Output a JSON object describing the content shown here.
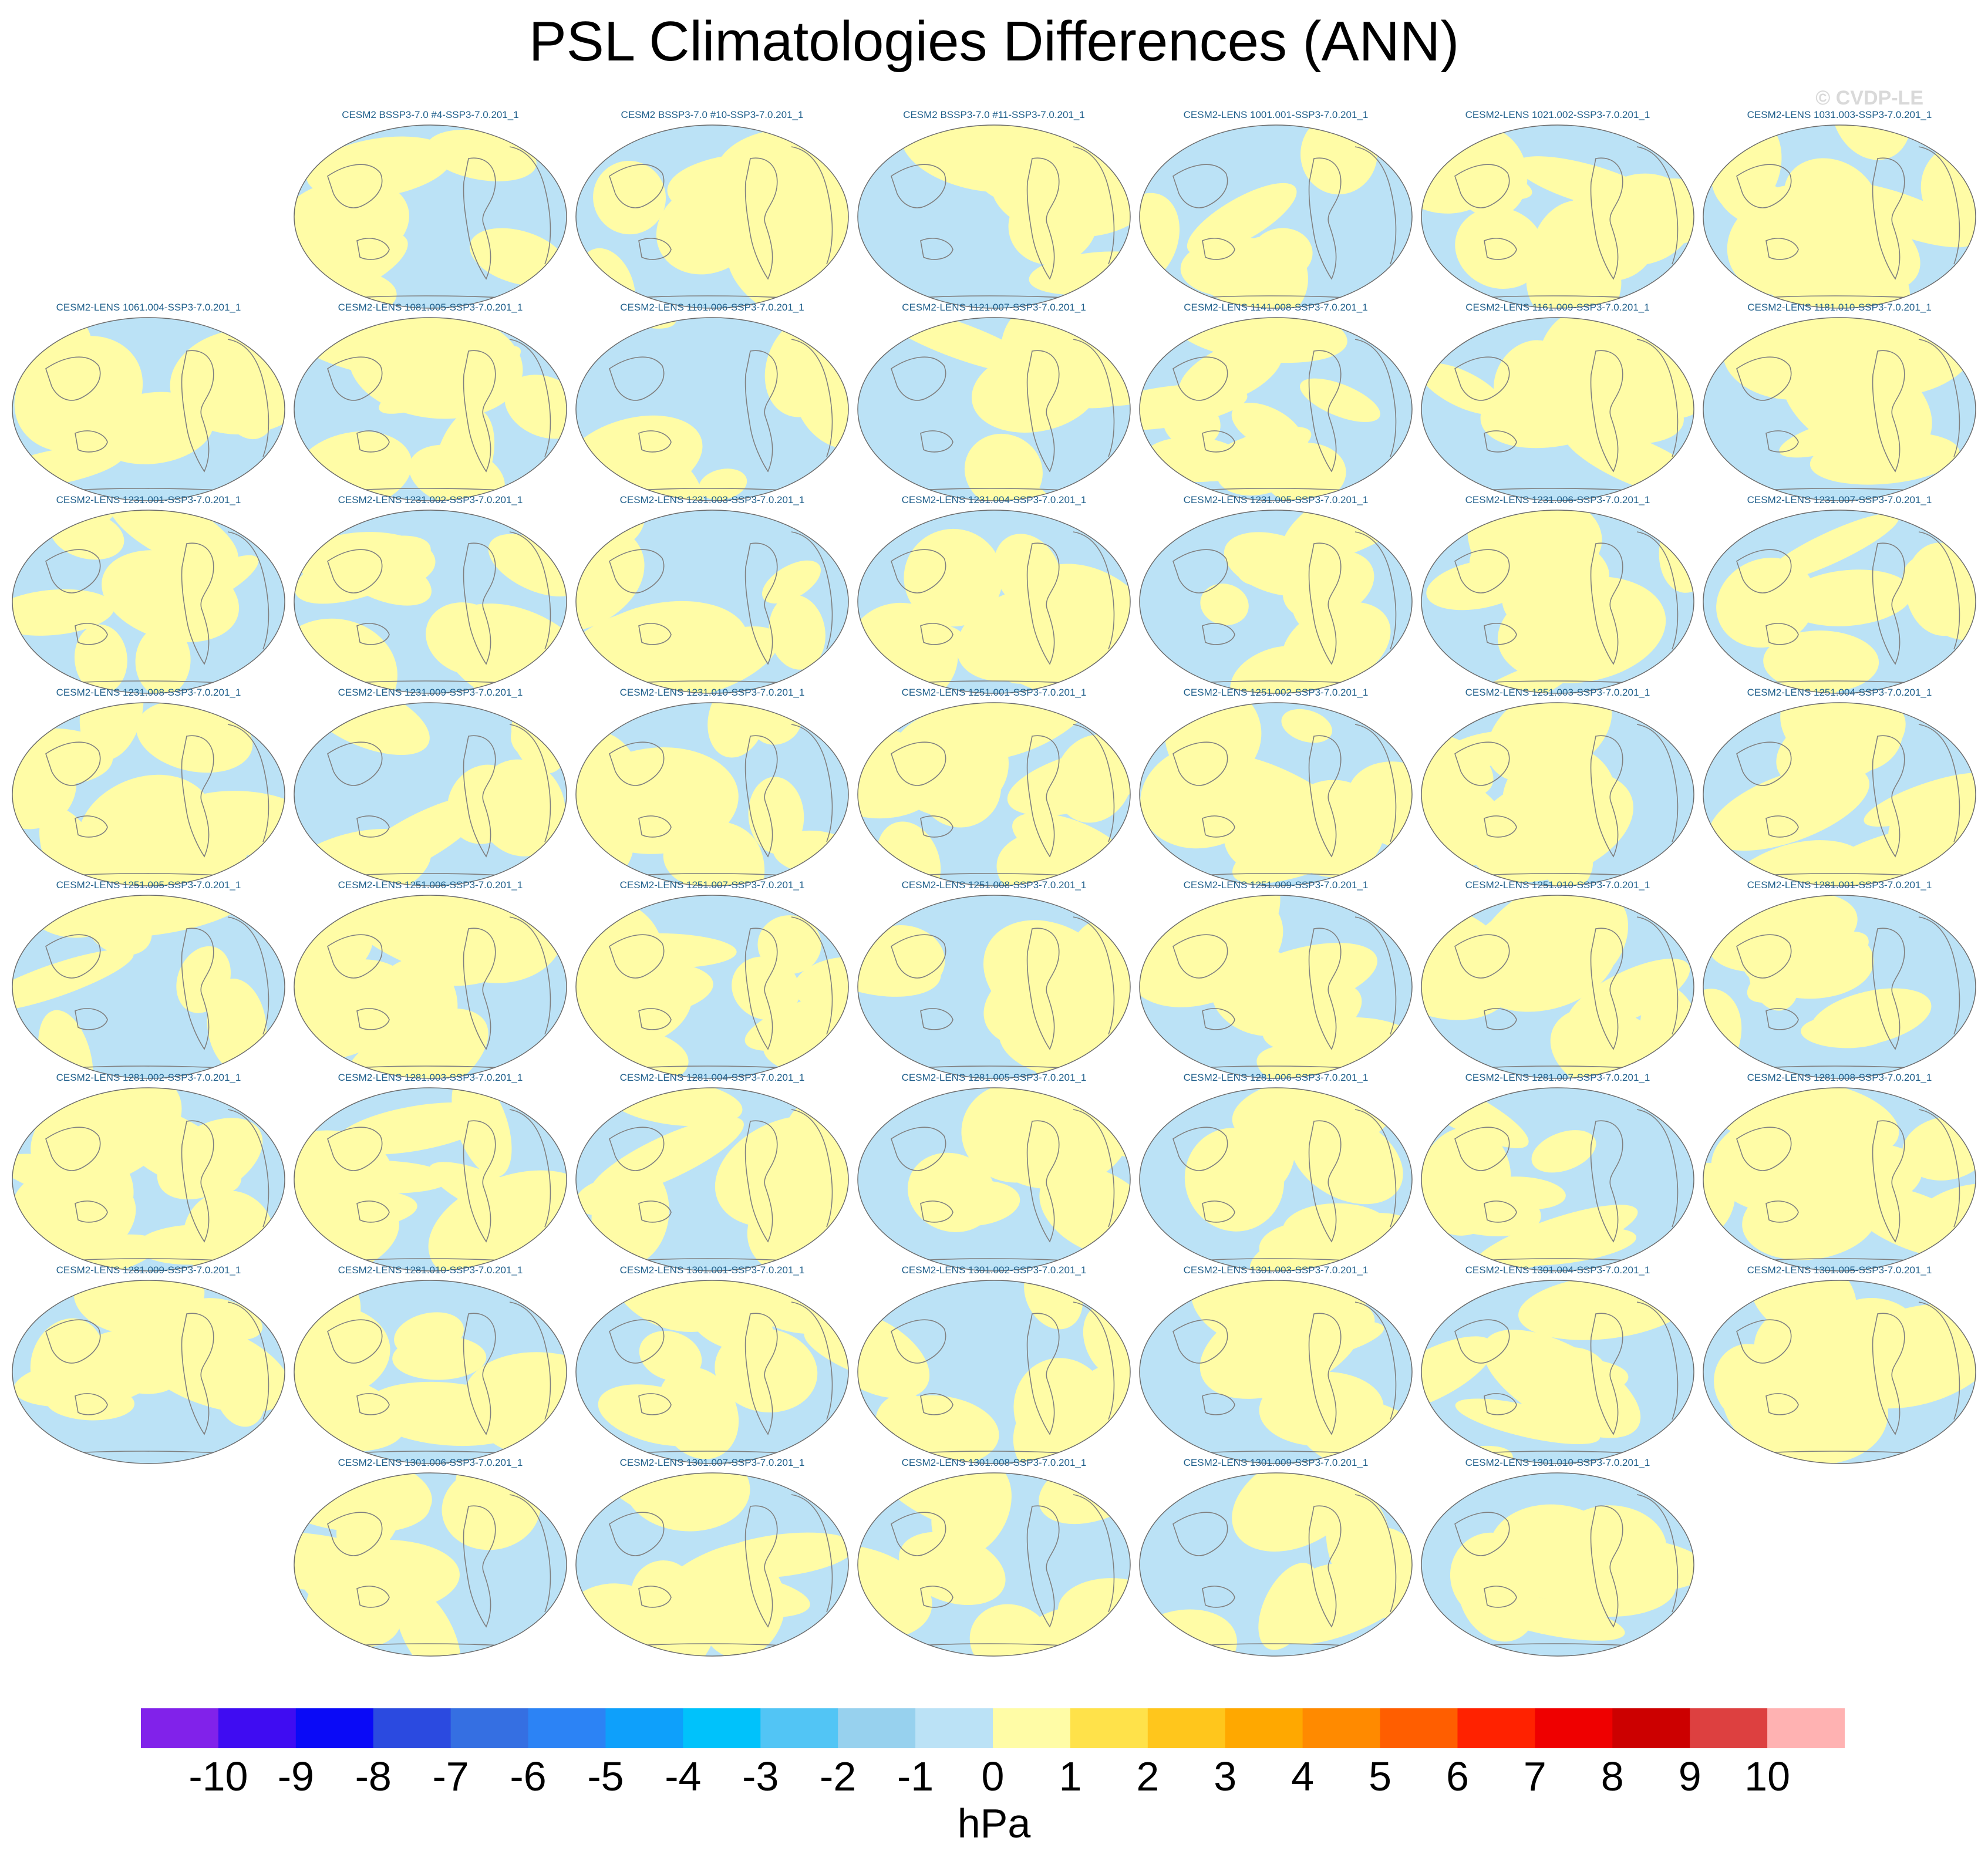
{
  "title": "PSL Climatologies Differences (ANN)",
  "watermark": "© CVDP-LE",
  "chart_data": {
    "type": "heatmap",
    "title": "PSL Climatologies Differences (ANN)",
    "season": "ANN",
    "variable": "PSL",
    "panels": [
      {
        "row": 0,
        "col": 1,
        "label": "CESM2 BSSP3-7.0 #4-SSP3-7.0.201_1"
      },
      {
        "row": 0,
        "col": 2,
        "label": "CESM2 BSSP3-7.0 #10-SSP3-7.0.201_1"
      },
      {
        "row": 0,
        "col": 3,
        "label": "CESM2 BSSP3-7.0 #11-SSP3-7.0.201_1"
      },
      {
        "row": 0,
        "col": 4,
        "label": "CESM2-LENS 1001.001-SSP3-7.0.201_1"
      },
      {
        "row": 0,
        "col": 5,
        "label": "CESM2-LENS 1021.002-SSP3-7.0.201_1"
      },
      {
        "row": 0,
        "col": 6,
        "label": "CESM2-LENS 1031.003-SSP3-7.0.201_1"
      },
      {
        "row": 1,
        "col": 0,
        "label": "CESM2-LENS 1061.004-SSP3-7.0.201_1"
      },
      {
        "row": 1,
        "col": 1,
        "label": "CESM2-LENS 1081.005-SSP3-7.0.201_1"
      },
      {
        "row": 1,
        "col": 2,
        "label": "CESM2-LENS 1101.006-SSP3-7.0.201_1"
      },
      {
        "row": 1,
        "col": 3,
        "label": "CESM2-LENS 1121.007-SSP3-7.0.201_1"
      },
      {
        "row": 1,
        "col": 4,
        "label": "CESM2-LENS 1141.008-SSP3-7.0.201_1"
      },
      {
        "row": 1,
        "col": 5,
        "label": "CESM2-LENS 1161.009-SSP3-7.0.201_1"
      },
      {
        "row": 1,
        "col": 6,
        "label": "CESM2-LENS 1181.010-SSP3-7.0.201_1"
      },
      {
        "row": 2,
        "col": 0,
        "label": "CESM2-LENS 1231.001-SSP3-7.0.201_1"
      },
      {
        "row": 2,
        "col": 1,
        "label": "CESM2-LENS 1231.002-SSP3-7.0.201_1"
      },
      {
        "row": 2,
        "col": 2,
        "label": "CESM2-LENS 1231.003-SSP3-7.0.201_1"
      },
      {
        "row": 2,
        "col": 3,
        "label": "CESM2-LENS 1231.004-SSP3-7.0.201_1"
      },
      {
        "row": 2,
        "col": 4,
        "label": "CESM2-LENS 1231.005-SSP3-7.0.201_1"
      },
      {
        "row": 2,
        "col": 5,
        "label": "CESM2-LENS 1231.006-SSP3-7.0.201_1"
      },
      {
        "row": 2,
        "col": 6,
        "label": "CESM2-LENS 1231.007-SSP3-7.0.201_1"
      },
      {
        "row": 3,
        "col": 0,
        "label": "CESM2-LENS 1231.008-SSP3-7.0.201_1"
      },
      {
        "row": 3,
        "col": 1,
        "label": "CESM2-LENS 1231.009-SSP3-7.0.201_1"
      },
      {
        "row": 3,
        "col": 2,
        "label": "CESM2-LENS 1231.010-SSP3-7.0.201_1"
      },
      {
        "row": 3,
        "col": 3,
        "label": "CESM2-LENS 1251.001-SSP3-7.0.201_1"
      },
      {
        "row": 3,
        "col": 4,
        "label": "CESM2-LENS 1251.002-SSP3-7.0.201_1"
      },
      {
        "row": 3,
        "col": 5,
        "label": "CESM2-LENS 1251.003-SSP3-7.0.201_1"
      },
      {
        "row": 3,
        "col": 6,
        "label": "CESM2-LENS 1251.004-SSP3-7.0.201_1"
      },
      {
        "row": 4,
        "col": 0,
        "label": "CESM2-LENS 1251.005-SSP3-7.0.201_1"
      },
      {
        "row": 4,
        "col": 1,
        "label": "CESM2-LENS 1251.006-SSP3-7.0.201_1"
      },
      {
        "row": 4,
        "col": 2,
        "label": "CESM2-LENS 1251.007-SSP3-7.0.201_1"
      },
      {
        "row": 4,
        "col": 3,
        "label": "CESM2-LENS 1251.008-SSP3-7.0.201_1"
      },
      {
        "row": 4,
        "col": 4,
        "label": "CESM2-LENS 1251.009-SSP3-7.0.201_1"
      },
      {
        "row": 4,
        "col": 5,
        "label": "CESM2-LENS 1251.010-SSP3-7.0.201_1"
      },
      {
        "row": 4,
        "col": 6,
        "label": "CESM2-LENS 1281.001-SSP3-7.0.201_1"
      },
      {
        "row": 5,
        "col": 0,
        "label": "CESM2-LENS 1281.002-SSP3-7.0.201_1"
      },
      {
        "row": 5,
        "col": 1,
        "label": "CESM2-LENS 1281.003-SSP3-7.0.201_1"
      },
      {
        "row": 5,
        "col": 2,
        "label": "CESM2-LENS 1281.004-SSP3-7.0.201_1"
      },
      {
        "row": 5,
        "col": 3,
        "label": "CESM2-LENS 1281.005-SSP3-7.0.201_1"
      },
      {
        "row": 5,
        "col": 4,
        "label": "CESM2-LENS 1281.006-SSP3-7.0.201_1"
      },
      {
        "row": 5,
        "col": 5,
        "label": "CESM2-LENS 1281.007-SSP3-7.0.201_1"
      },
      {
        "row": 5,
        "col": 6,
        "label": "CESM2-LENS 1281.008-SSP3-7.0.201_1"
      },
      {
        "row": 6,
        "col": 0,
        "label": "CESM2-LENS 1281.009-SSP3-7.0.201_1"
      },
      {
        "row": 6,
        "col": 1,
        "label": "CESM2-LENS 1281.010-SSP3-7.0.201_1"
      },
      {
        "row": 6,
        "col": 2,
        "label": "CESM2-LENS 1301.001-SSP3-7.0.201_1"
      },
      {
        "row": 6,
        "col": 3,
        "label": "CESM2-LENS 1301.002-SSP3-7.0.201_1"
      },
      {
        "row": 6,
        "col": 4,
        "label": "CESM2-LENS 1301.003-SSP3-7.0.201_1"
      },
      {
        "row": 6,
        "col": 5,
        "label": "CESM2-LENS 1301.004-SSP3-7.0.201_1"
      },
      {
        "row": 6,
        "col": 6,
        "label": "CESM2-LENS 1301.005-SSP3-7.0.201_1"
      },
      {
        "row": 7,
        "col": 1,
        "label": "CESM2-LENS 1301.006-SSP3-7.0.201_1"
      },
      {
        "row": 7,
        "col": 2,
        "label": "CESM2-LENS 1301.007-SSP3-7.0.201_1"
      },
      {
        "row": 7,
        "col": 3,
        "label": "CESM2-LENS 1301.008-SSP3-7.0.201_1"
      },
      {
        "row": 7,
        "col": 4,
        "label": "CESM2-LENS 1301.009-SSP3-7.0.201_1"
      },
      {
        "row": 7,
        "col": 5,
        "label": "CESM2-LENS 1301.010-SSP3-7.0.201_1"
      }
    ],
    "colorbar": {
      "units": "hPa",
      "ticks": [
        "-10",
        "-9",
        "-8",
        "-7",
        "-6",
        "-5",
        "-4",
        "-3",
        "-2",
        "-1",
        "0",
        "1",
        "2",
        "3",
        "4",
        "5",
        "6",
        "7",
        "8",
        "9",
        "10"
      ],
      "colors": [
        "#8122ea",
        "#3f0cf2",
        "#0a0af7",
        "#2b4ae0",
        "#356fe2",
        "#2c83f5",
        "#0ea0fb",
        "#00c2fb",
        "#52c5f5",
        "#97d1ee",
        "#bbe2f6",
        "#fffca6",
        "#ffe24a",
        "#ffc61c",
        "#ffa800",
        "#ff8a00",
        "#ff5e00",
        "#ff2200",
        "#ef0000",
        "#cc0000",
        "#dd4040",
        "#ffb2b2"
      ]
    },
    "map_colors": {
      "ocean_negative": "#bbe2f6",
      "positive": "#fffca6",
      "coastline": "#808080"
    }
  }
}
